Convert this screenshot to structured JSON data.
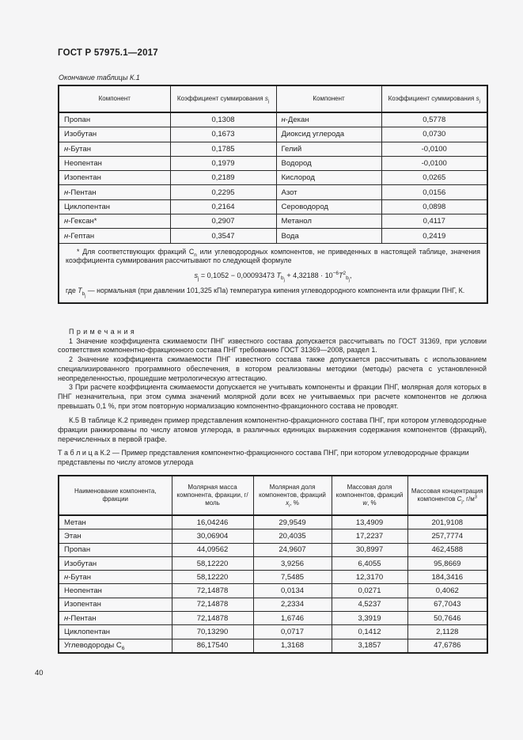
{
  "page": {
    "doc_code": "ГОСТ Р 57975.1—2017",
    "page_number": "40"
  },
  "table_k1": {
    "caption": "Окончание таблицы К.1",
    "headers": {
      "component": "Компонент",
      "coefficient": "Коэффициент суммирования *s*_{j}"
    },
    "rows": [
      [
        "Пропан",
        "0,1308",
        "*н*-Декан",
        "0,5778"
      ],
      [
        "Изобутан",
        "0,1673",
        "Диоксид углерода",
        "0,0730"
      ],
      [
        "*н*-Бутан",
        "0,1785",
        "Гелий",
        "-0,0100"
      ],
      [
        "Неопентан",
        "0,1979",
        "Водород",
        "-0,0100"
      ],
      [
        "Изопентан",
        "0,2189",
        "Кислород",
        "0,0265"
      ],
      [
        "*н*-Пентан",
        "0,2295",
        "Азот",
        "0,0156"
      ],
      [
        "Циклопентан",
        "0,2164",
        "Сероводород",
        "0,0898"
      ],
      [
        "*н*-Гексан*",
        "0,2907",
        "Метанол",
        "0,4117"
      ],
      [
        "*н*-Гептан",
        "0,3547",
        "Вода",
        "0,2419"
      ]
    ],
    "footnote": {
      "text": "* Для соответствующих фракций С_{n} или углеводородных компонентов, не приведенных в настоящей таблице, значения коэффициента суммирования рассчитывают по следующей формуле",
      "formula": "*s*_{j} = 0,1052 − 0,00093473 *T*_{b_{j}} + 4,32188 · 10^{−6}*T*^{2}_{b_{j}},",
      "where": "где *T*_{b_{j}} — нормальная (при давлении 101,325 кПа) температура кипения углеводородного компонента или фракции ПНГ, К."
    }
  },
  "notes": {
    "heading": "П р и м е ч а н и я",
    "items": [
      "1 Значение коэффициента сжимаемости ПНГ известного состава допускается рассчитывать по ГОСТ 31369, при условии соответствия компонентно-фракционного состава ПНГ требованию ГОСТ 31369—2008, раздел 1.",
      "2 Значение коэффициента сжимаемости ПНГ известного состава также допускается рассчитывать с использованием специализированного программного обеспечения, в котором реализованы методики (методы) расчета с установленной неопределенностью, прошедшие метрологическую аттестацию.",
      "3 При расчете коэффициента сжимаемости допускается не учитывать компоненты и фракции ПНГ, молярная доля которых в ПНГ незначительна, при этом сумма значений молярной доли всех не учитываемых при расчете компонентов не должна превышать 0,1 %, при этом повторную нормализацию компонентно-фракционного состава не проводят."
    ]
  },
  "section_k5": "К.5 В таблице К.2 приведен пример представления компонентно-фракционного состава ПНГ, при котором углеводородные фракции ранжированы по числу атомов углерода, в различных единицах выражения содержания компонентов (фракций), перечисленных в первой графе.",
  "table_k2": {
    "caption": "Т а б л и ц а  К.2 — Пример представления компонентно-фракционного состава ПНГ, при котором углеводородные фракции представлены по числу атомов углерода",
    "headers": [
      "Наименование компонента, фракции",
      "Молярная масса компонента, фракции, г/моль",
      "Молярная доля компонентов, фракций *x*_{i}, %",
      "Массовая доля компонентов, фракций *w*, %",
      "Массовая концентрация компонентов *C*_{j}, г/м^{3}"
    ],
    "rows": [
      [
        "Метан",
        "16,04246",
        "29,9549",
        "13,4909",
        "201,9108"
      ],
      [
        "Этан",
        "30,06904",
        "20,4035",
        "17,2237",
        "257,7774"
      ],
      [
        "Пропан",
        "44,09562",
        "24,9607",
        "30,8997",
        "462,4588"
      ],
      [
        "Изобутан",
        "58,12220",
        "3,9256",
        "6,4055",
        "95,8669"
      ],
      [
        "*н*-Бутан",
        "58,12220",
        "7,5485",
        "12,3170",
        "184,3416"
      ],
      [
        "Неопентан",
        "72,14878",
        "0,0134",
        "0,0271",
        "0,4062"
      ],
      [
        "Изопентан",
        "72,14878",
        "2,2334",
        "4,5237",
        "67,7043"
      ],
      [
        "*н*-Пентан",
        "72,14878",
        "1,6746",
        "3,3919",
        "50,7646"
      ],
      [
        "Циклопентан",
        "70,13290",
        "0,0717",
        "0,1412",
        "2,1128"
      ],
      [
        "Углеводороды С_{6}",
        "86,17540",
        "1,3168",
        "3,1857",
        "47,6786"
      ]
    ]
  }
}
